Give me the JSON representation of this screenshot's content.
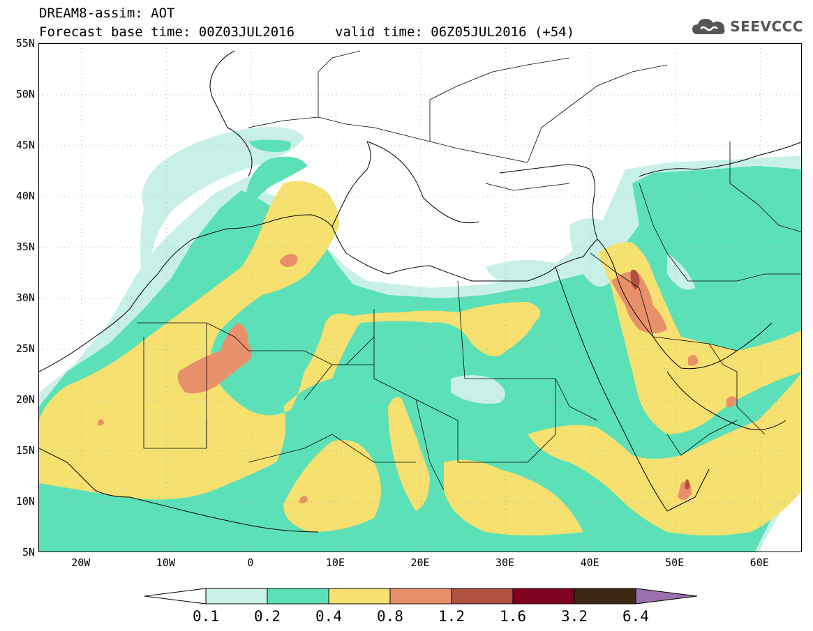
{
  "header": {
    "line1": "DREAM8-assim: AOT",
    "line2": "Forecast base time: 00Z03JUL2016",
    "line3": "valid time: 06Z05JUL2016 (+54)"
  },
  "logo": {
    "text": "SEEVCCC",
    "icon": "cloud-icon"
  },
  "axes": {
    "lat_labels": [
      "55N",
      "50N",
      "45N",
      "40N",
      "35N",
      "30N",
      "25N",
      "20N",
      "15N",
      "10N",
      "5N"
    ],
    "lon_labels": [
      "20W",
      "10W",
      "0",
      "10E",
      "20E",
      "30E",
      "40E",
      "50E",
      "60E"
    ],
    "lat_range": [
      5,
      55
    ],
    "lon_range": [
      -25,
      65
    ]
  },
  "colorbar": {
    "thresholds": [
      "0.1",
      "0.2",
      "0.4",
      "0.8",
      "1.2",
      "1.6",
      "3.2",
      "6.4"
    ],
    "colors": [
      "#c8f0e8",
      "#5ce0b8",
      "#f5e070",
      "#e8906a",
      "#b05040",
      "#800020",
      "#3c2814"
    ],
    "under_color": "#ffffff",
    "over_color": "#9c6fae"
  },
  "legend_colors": {
    "c1": "#c8f0e8",
    "c2": "#5ce0b8",
    "c3": "#f5e070",
    "c4": "#e8906a",
    "c5": "#b05040"
  }
}
